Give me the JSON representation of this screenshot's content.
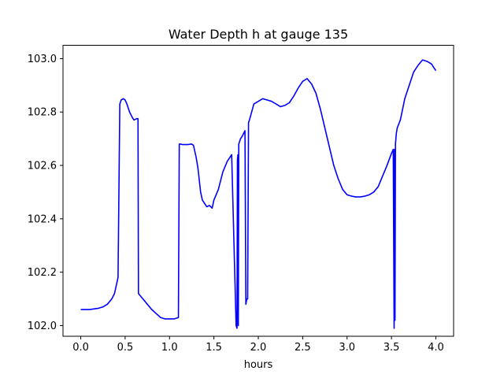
{
  "chart_data": {
    "type": "line",
    "title": "Water Depth h at gauge 135",
    "xlabel": "hours",
    "ylabel": "",
    "xlim": [
      -0.2,
      4.2
    ],
    "ylim": [
      101.96,
      103.05
    ],
    "xticks": [
      0.0,
      0.5,
      1.0,
      1.5,
      2.0,
      2.5,
      3.0,
      3.5,
      4.0
    ],
    "xtick_labels": [
      "0.0",
      "0.5",
      "1.0",
      "1.5",
      "2.0",
      "2.5",
      "3.0",
      "3.5",
      "4.0"
    ],
    "yticks": [
      102.0,
      102.2,
      102.4,
      102.6,
      102.8,
      103.0
    ],
    "ytick_labels": [
      "102.0",
      "102.2",
      "102.4",
      "102.6",
      "102.8",
      "103.0"
    ],
    "grid": false,
    "series": [
      {
        "color": "#0000ff",
        "x": [
          0.0,
          0.1,
          0.2,
          0.25,
          0.3,
          0.35,
          0.38,
          0.4,
          0.42,
          0.44,
          0.45,
          0.455,
          0.47,
          0.48,
          0.5,
          0.52,
          0.55,
          0.58,
          0.6,
          0.63,
          0.645,
          0.65,
          0.7,
          0.75,
          0.8,
          0.85,
          0.9,
          0.95,
          1.0,
          1.05,
          1.1,
          1.11,
          1.12,
          1.15,
          1.2,
          1.25,
          1.27,
          1.3,
          1.32,
          1.35,
          1.37,
          1.4,
          1.42,
          1.45,
          1.48,
          1.5,
          1.55,
          1.6,
          1.65,
          1.7,
          1.75,
          1.76,
          1.765,
          1.77,
          1.775,
          1.78,
          1.8,
          1.82,
          1.85,
          1.86,
          1.87,
          1.88,
          1.89,
          1.9,
          1.95,
          2.0,
          2.05,
          2.1,
          2.15,
          2.2,
          2.25,
          2.3,
          2.35,
          2.4,
          2.45,
          2.5,
          2.55,
          2.6,
          2.65,
          2.7,
          2.75,
          2.8,
          2.85,
          2.9,
          2.95,
          3.0,
          3.05,
          3.1,
          3.15,
          3.2,
          3.25,
          3.3,
          3.35,
          3.4,
          3.45,
          3.5,
          3.52,
          3.53,
          3.535,
          3.54,
          3.545,
          3.55,
          3.555,
          3.56,
          3.565,
          3.6,
          3.65,
          3.7,
          3.75,
          3.8,
          3.85,
          3.9,
          3.95,
          4.0
        ],
        "y": [
          102.06,
          102.06,
          102.065,
          102.07,
          102.08,
          102.1,
          102.12,
          102.15,
          102.18,
          102.83,
          102.84,
          102.845,
          102.848,
          102.85,
          102.845,
          102.83,
          102.8,
          102.78,
          102.77,
          102.775,
          102.775,
          102.12,
          102.1,
          102.08,
          102.06,
          102.045,
          102.03,
          102.025,
          102.025,
          102.025,
          102.03,
          102.68,
          102.68,
          102.678,
          102.678,
          102.68,
          102.675,
          102.63,
          102.59,
          102.5,
          102.47,
          102.455,
          102.445,
          102.45,
          102.44,
          102.47,
          102.51,
          102.575,
          102.615,
          102.64,
          102.0,
          101.99,
          102.62,
          102.64,
          102.0,
          102.68,
          102.7,
          102.71,
          102.73,
          102.08,
          102.1,
          102.1,
          102.76,
          102.77,
          102.83,
          102.84,
          102.85,
          102.845,
          102.84,
          102.83,
          102.82,
          102.825,
          102.835,
          102.86,
          102.89,
          102.915,
          102.925,
          102.905,
          102.87,
          102.81,
          102.74,
          102.67,
          102.6,
          102.55,
          102.51,
          102.49,
          102.485,
          102.482,
          102.482,
          102.485,
          102.49,
          102.5,
          102.52,
          102.56,
          102.6,
          102.645,
          102.66,
          101.99,
          102.66,
          102.02,
          102.68,
          102.7,
          102.72,
          102.73,
          102.74,
          102.77,
          102.85,
          102.9,
          102.95,
          102.975,
          102.995,
          102.99,
          102.98,
          102.955
        ]
      }
    ]
  }
}
